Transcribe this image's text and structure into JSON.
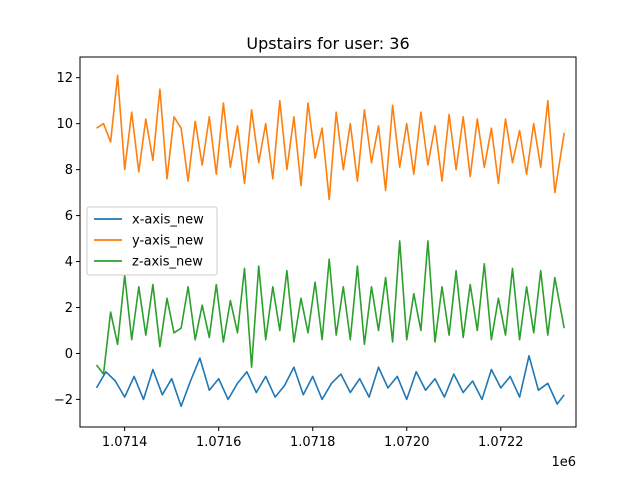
{
  "chart_data": {
    "type": "line",
    "title": "Upstairs for user: 36",
    "xlabel": "",
    "ylabel": "",
    "x_offset_label": "1e6",
    "xlim": [
      1071305,
      1072360
    ],
    "ylim": [
      -3.2,
      12.9
    ],
    "x_ticks": [
      1071400,
      1071600,
      1071800,
      1072000,
      1072200
    ],
    "x_tick_labels": [
      "1.0714",
      "1.0716",
      "1.0718",
      "1.0720",
      "1.0722"
    ],
    "y_ticks": [
      -2,
      0,
      2,
      4,
      6,
      8,
      10,
      12
    ],
    "y_tick_labels": [
      "−2",
      "0",
      "2",
      "4",
      "6",
      "8",
      "10",
      "12"
    ],
    "grid": false,
    "legend_position": "center-left",
    "series": [
      {
        "name": "x-axis_new",
        "color": "#1f77b4",
        "x": [
          1071340,
          1071360,
          1071380,
          1071400,
          1071420,
          1071440,
          1071460,
          1071480,
          1071500,
          1071520,
          1071540,
          1071560,
          1071580,
          1071600,
          1071620,
          1071640,
          1071660,
          1071680,
          1071700,
          1071720,
          1071740,
          1071760,
          1071780,
          1071800,
          1071820,
          1071840,
          1071860,
          1071880,
          1071900,
          1071920,
          1071940,
          1071960,
          1071980,
          1072000,
          1072020,
          1072040,
          1072060,
          1072080,
          1072100,
          1072120,
          1072140,
          1072160,
          1072180,
          1072200,
          1072220,
          1072240,
          1072260,
          1072280,
          1072300,
          1072320,
          1072335
        ],
        "y": [
          -1.5,
          -0.8,
          -1.2,
          -1.9,
          -1.0,
          -2.0,
          -0.7,
          -1.8,
          -1.1,
          -2.3,
          -1.2,
          -0.2,
          -1.6,
          -1.1,
          -2.0,
          -1.3,
          -0.8,
          -1.7,
          -1.0,
          -1.9,
          -1.4,
          -0.6,
          -1.8,
          -1.0,
          -2.0,
          -1.3,
          -0.9,
          -1.7,
          -1.1,
          -1.9,
          -0.6,
          -1.5,
          -1.0,
          -2.0,
          -0.8,
          -1.6,
          -1.1,
          -1.9,
          -0.9,
          -1.7,
          -1.2,
          -2.0,
          -0.7,
          -1.5,
          -1.0,
          -1.9,
          -0.1,
          -1.6,
          -1.3,
          -2.2,
          -1.8
        ]
      },
      {
        "name": "y-axis_new",
        "color": "#ff7f0e",
        "x": [
          1071340,
          1071355,
          1071370,
          1071385,
          1071400,
          1071415,
          1071430,
          1071445,
          1071460,
          1071475,
          1071490,
          1071505,
          1071520,
          1071535,
          1071550,
          1071565,
          1071580,
          1071595,
          1071610,
          1071625,
          1071640,
          1071655,
          1071670,
          1071685,
          1071700,
          1071715,
          1071730,
          1071745,
          1071760,
          1071775,
          1071790,
          1071805,
          1071820,
          1071835,
          1071850,
          1071865,
          1071880,
          1071895,
          1071910,
          1071925,
          1071940,
          1071955,
          1071970,
          1071985,
          1072000,
          1072015,
          1072030,
          1072045,
          1072060,
          1072075,
          1072090,
          1072105,
          1072120,
          1072135,
          1072150,
          1072165,
          1072180,
          1072195,
          1072210,
          1072225,
          1072240,
          1072255,
          1072270,
          1072285,
          1072300,
          1072315,
          1072335
        ],
        "y": [
          9.8,
          10.0,
          9.2,
          12.1,
          8.0,
          10.5,
          7.9,
          10.2,
          8.4,
          11.5,
          7.6,
          10.3,
          9.8,
          7.5,
          10.1,
          8.2,
          10.3,
          7.8,
          10.9,
          8.1,
          9.9,
          7.4,
          10.6,
          8.3,
          10.0,
          7.6,
          11.0,
          8.0,
          10.3,
          7.3,
          10.9,
          8.5,
          9.8,
          6.7,
          10.5,
          8.0,
          10.0,
          7.5,
          10.6,
          8.3,
          9.9,
          7.1,
          10.8,
          8.1,
          10.0,
          7.8,
          10.5,
          8.2,
          9.9,
          7.5,
          10.4,
          8.0,
          10.3,
          7.7,
          10.2,
          8.1,
          9.8,
          7.4,
          10.2,
          8.3,
          9.7,
          7.8,
          10.0,
          8.1,
          11.0,
          7.0,
          9.6
        ]
      },
      {
        "name": "z-axis_new",
        "color": "#2ca02c",
        "x": [
          1071340,
          1071355,
          1071370,
          1071385,
          1071400,
          1071415,
          1071430,
          1071445,
          1071460,
          1071475,
          1071490,
          1071505,
          1071520,
          1071535,
          1071550,
          1071565,
          1071580,
          1071595,
          1071610,
          1071625,
          1071640,
          1071655,
          1071670,
          1071685,
          1071700,
          1071715,
          1071730,
          1071745,
          1071760,
          1071775,
          1071790,
          1071805,
          1071820,
          1071835,
          1071850,
          1071865,
          1071880,
          1071895,
          1071910,
          1071925,
          1071940,
          1071955,
          1071970,
          1071985,
          1072000,
          1072015,
          1072030,
          1072045,
          1072060,
          1072075,
          1072090,
          1072105,
          1072120,
          1072135,
          1072150,
          1072165,
          1072180,
          1072195,
          1072210,
          1072225,
          1072240,
          1072255,
          1072270,
          1072285,
          1072300,
          1072315,
          1072335
        ],
        "y": [
          -0.5,
          -0.9,
          1.8,
          0.4,
          3.4,
          0.6,
          2.9,
          0.8,
          3.0,
          0.3,
          2.4,
          0.9,
          1.1,
          2.9,
          0.6,
          2.1,
          0.7,
          3.0,
          0.5,
          2.3,
          0.9,
          3.7,
          -0.6,
          3.8,
          0.6,
          2.9,
          1.0,
          3.6,
          0.5,
          2.4,
          0.9,
          3.1,
          0.6,
          4.1,
          0.8,
          2.9,
          0.6,
          3.8,
          0.4,
          2.9,
          1.0,
          3.3,
          0.5,
          4.9,
          0.6,
          2.6,
          1.0,
          4.9,
          0.5,
          2.9,
          0.8,
          3.6,
          0.7,
          3.0,
          1.0,
          3.9,
          0.6,
          2.4,
          0.8,
          3.7,
          0.6,
          2.9,
          0.9,
          3.6,
          0.8,
          3.3,
          1.1
        ]
      }
    ]
  }
}
